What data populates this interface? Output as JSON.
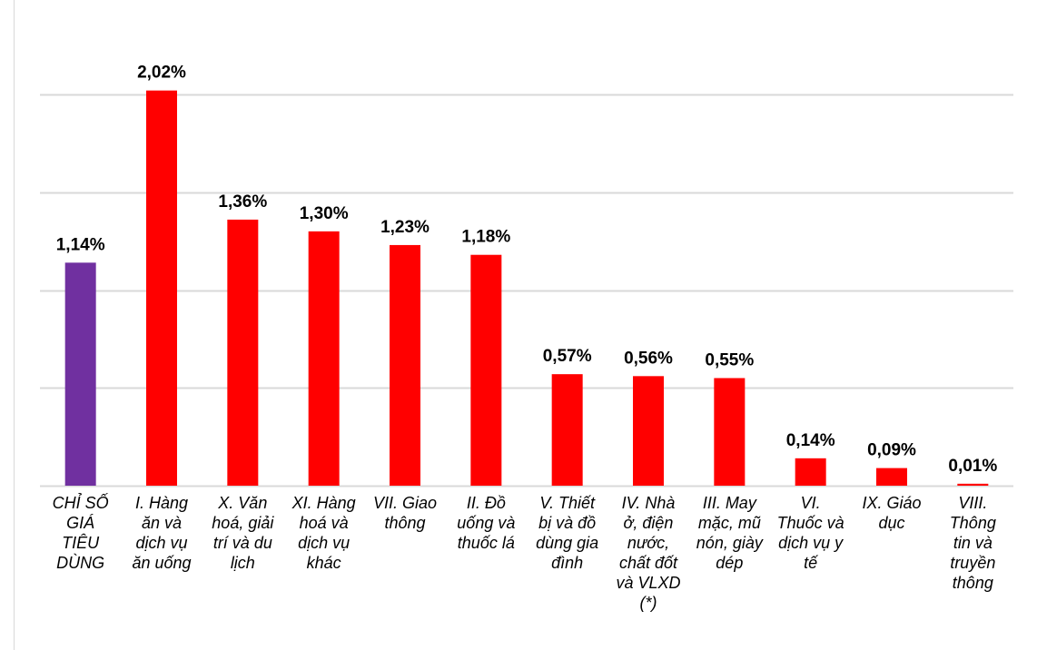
{
  "chart_data": {
    "type": "bar",
    "categories": [
      "CHỈ SỐ GIÁ TIÊU DÙNG",
      "I. Hàng ăn và dịch vụ ăn uống",
      "X. Văn hoá, giải trí và du lịch",
      "XI. Hàng hoá và dịch vụ khác",
      "VII. Giao thông",
      "II. Đồ uống và thuốc lá",
      "V. Thiết bị và đồ dùng gia đình",
      "IV. Nhà ở, điện nước, chất đốt và VLXD (*)",
      "III. May mặc, mũ nón, giày dép",
      "VI. Thuốc và dịch vụ y tế",
      "IX. Giáo dục",
      "VIII. Thông tin và truyền thông"
    ],
    "category_lines": [
      [
        "CHỈ SỐ",
        "GIÁ",
        "TIÊU",
        "DÙNG"
      ],
      [
        "I. Hàng",
        "ăn và",
        "dịch vụ",
        "ăn uống"
      ],
      [
        "X. Văn",
        "hoá, giải",
        "trí và du",
        "lịch"
      ],
      [
        "XI. Hàng",
        "hoá và",
        "dịch vụ",
        "khác"
      ],
      [
        "VII. Giao",
        "thông"
      ],
      [
        "II. Đồ",
        "uống và",
        "thuốc lá"
      ],
      [
        "V. Thiết",
        "bị và đồ",
        "dùng gia",
        "đình"
      ],
      [
        "IV. Nhà",
        "ở, điện",
        "nước,",
        "chất đốt",
        "và VLXD",
        "(*)"
      ],
      [
        "III. May",
        "mặc, mũ",
        "nón, giày",
        "dép"
      ],
      [
        "VI.",
        "Thuốc và",
        "dịch vụ y",
        "tế"
      ],
      [
        "IX. Giáo",
        "dục"
      ],
      [
        "VIII.",
        "Thông",
        "tin và",
        "truyền",
        "thông"
      ]
    ],
    "values": [
      1.14,
      2.02,
      1.36,
      1.3,
      1.23,
      1.18,
      0.57,
      0.56,
      0.55,
      0.14,
      0.09,
      0.01
    ],
    "value_labels": [
      "1,14%",
      "2,02%",
      "1,36%",
      "1,30%",
      "1,23%",
      "1,18%",
      "0,57%",
      "0,56%",
      "0,55%",
      "0,14%",
      "0,09%",
      "0,01%"
    ],
    "colors": [
      "#7030A0",
      "#FF0000",
      "#FF0000",
      "#FF0000",
      "#FF0000",
      "#FF0000",
      "#FF0000",
      "#FF0000",
      "#FF0000",
      "#FF0000",
      "#FF0000",
      "#FF0000"
    ],
    "ylim": [
      0,
      2.0
    ],
    "gridlines": [
      0.5,
      1.0,
      1.5,
      2.0
    ],
    "grid": true,
    "title": "",
    "xlabel": "",
    "ylabel": ""
  }
}
